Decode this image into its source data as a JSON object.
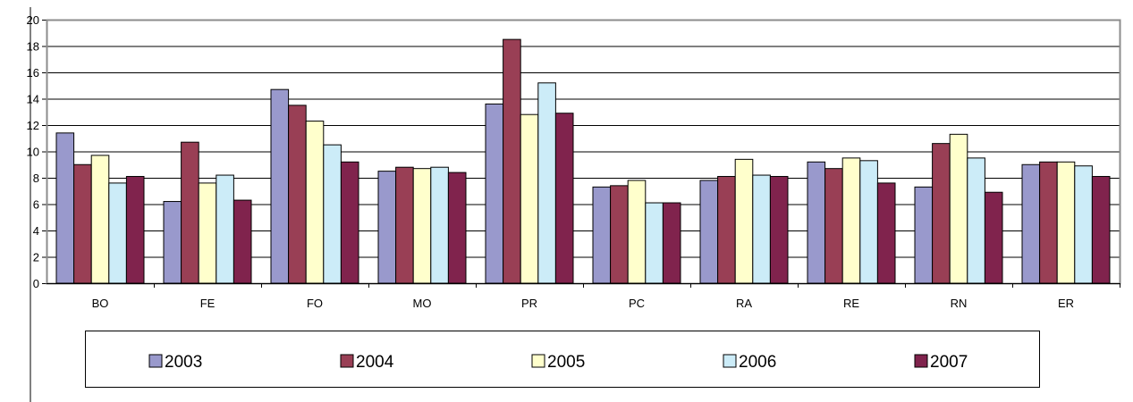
{
  "chart_data": {
    "type": "bar",
    "categories": [
      "BO",
      "FE",
      "FO",
      "MO",
      "PR",
      "PC",
      "RA",
      "RE",
      "RN",
      "ER"
    ],
    "series": [
      {
        "name": "2003",
        "color": "#9999cc",
        "values": [
          11.4,
          6.2,
          14.7,
          8.5,
          13.6,
          7.3,
          7.8,
          9.2,
          7.3,
          9.0
        ]
      },
      {
        "name": "2004",
        "color": "#993f55",
        "values": [
          9.0,
          10.7,
          13.5,
          8.8,
          18.5,
          7.4,
          8.1,
          8.7,
          10.6,
          9.2
        ]
      },
      {
        "name": "2005",
        "color": "#ffffcc",
        "values": [
          9.7,
          7.6,
          12.3,
          8.7,
          12.8,
          7.8,
          9.4,
          9.5,
          11.3,
          9.2
        ]
      },
      {
        "name": "2006",
        "color": "#ccecf8",
        "values": [
          7.6,
          8.2,
          10.5,
          8.8,
          15.2,
          6.1,
          8.2,
          9.3,
          9.5,
          8.9
        ]
      },
      {
        "name": "2007",
        "color": "#80234d",
        "values": [
          8.1,
          6.3,
          9.2,
          8.4,
          12.9,
          6.1,
          8.1,
          7.6,
          6.9,
          8.1
        ]
      }
    ],
    "title": "",
    "xlabel": "",
    "ylabel": "",
    "ylim": [
      0,
      20
    ],
    "yticks": [
      "0",
      "2",
      "4",
      "6",
      "8",
      "10",
      "12",
      "14",
      "16",
      "18",
      "20"
    ],
    "grid": true,
    "legend_position": "bottom",
    "colors": {
      "plot_border": "#8c8c8c",
      "gridline": "#000000",
      "axis": "#000000",
      "bar_outline": "#000000"
    }
  }
}
